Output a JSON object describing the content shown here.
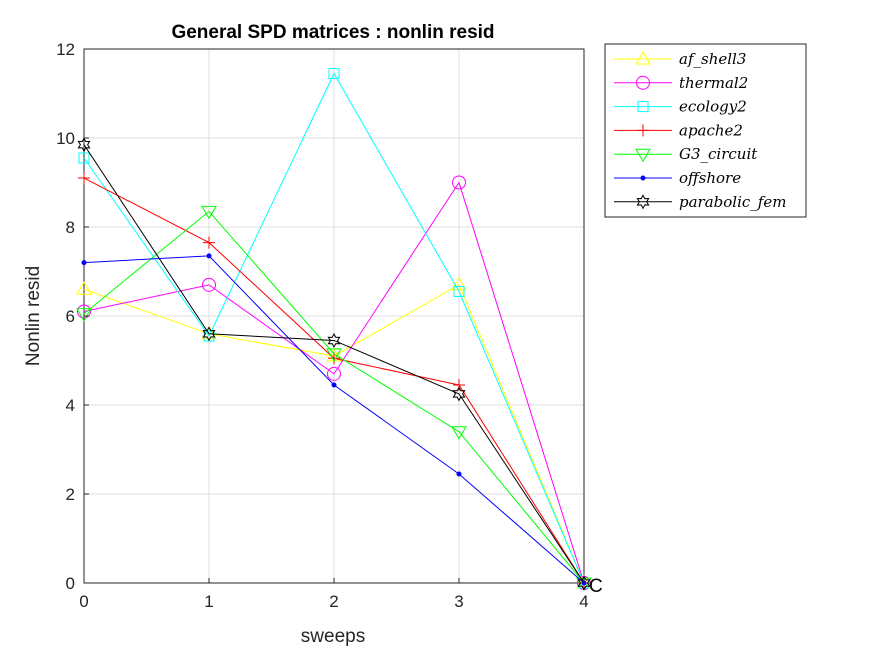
{
  "chart_data": {
    "type": "line",
    "title": "General SPD matrices : nonlin resid",
    "xlabel": "sweeps",
    "ylabel": "Nonlin resid",
    "x": [
      0,
      1,
      2,
      3,
      4
    ],
    "xlim": [
      0,
      4
    ],
    "ylim": [
      0,
      12
    ],
    "xticks": [
      "0",
      "1",
      "2",
      "3",
      "4"
    ],
    "yticks": [
      "0",
      "2",
      "4",
      "6",
      "8",
      "10",
      "12"
    ],
    "grid": true,
    "legend_position": "top-right (outside plot)",
    "annotation": "C",
    "series": [
      {
        "name": "af_shell3",
        "color": "#ffff00",
        "marker": "triangle-up",
        "values": [
          6.6,
          5.6,
          5.1,
          6.7,
          0
        ]
      },
      {
        "name": "thermal2",
        "color": "#ff00ff",
        "marker": "circle",
        "values": [
          6.1,
          6.7,
          4.7,
          9.0,
          0
        ]
      },
      {
        "name": "ecology2",
        "color": "#00ffff",
        "marker": "square",
        "values": [
          9.55,
          5.55,
          11.45,
          6.55,
          0
        ]
      },
      {
        "name": "apache2",
        "color": "#ff0000",
        "marker": "plus",
        "values": [
          9.1,
          7.65,
          5.05,
          4.45,
          0
        ]
      },
      {
        "name": "G3_circuit",
        "color": "#00ff00",
        "marker": "triangle-down",
        "values": [
          6.05,
          8.35,
          5.15,
          3.4,
          0
        ]
      },
      {
        "name": "offshore",
        "color": "#0000ff",
        "marker": "dot",
        "values": [
          7.2,
          7.35,
          4.45,
          2.45,
          0
        ]
      },
      {
        "name": "parabolic_fem",
        "color": "#000000",
        "marker": "hexagram",
        "values": [
          9.85,
          5.6,
          5.45,
          4.25,
          0
        ]
      }
    ]
  }
}
